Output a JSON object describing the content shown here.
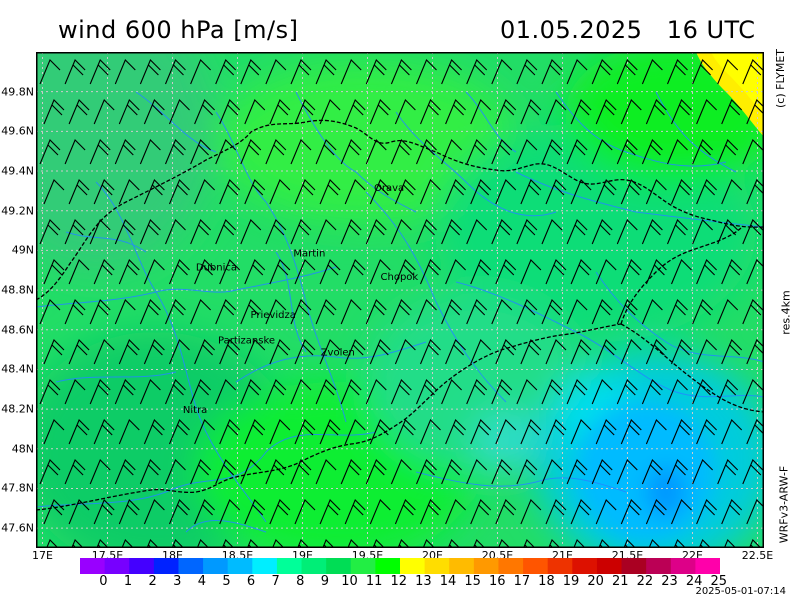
{
  "header": {
    "title": "wind 600 hPa [m/s]",
    "datetime": "01.05.2025   16 UTC"
  },
  "side_labels": {
    "copyright": "(c) FLYMET",
    "resolution": "res.4km",
    "model": "WRFv3-ARW-F"
  },
  "footer": {
    "timestamp": "2025-05-01-07:14"
  },
  "map": {
    "lon_range": [
      16.95,
      22.55
    ],
    "lat_range": [
      47.5,
      50.0
    ],
    "y_ticks": [
      "47.6N",
      "47.8N",
      "48N",
      "48.2N",
      "48.4N",
      "48.6N",
      "48.8N",
      "49N",
      "49.2N",
      "49.4N",
      "49.6N",
      "49.8N"
    ],
    "y_tick_values": [
      47.6,
      47.8,
      48.0,
      48.2,
      48.4,
      48.6,
      48.8,
      49.0,
      49.2,
      49.4,
      49.6,
      49.8
    ],
    "x_ticks": [
      "17E",
      "17.5E",
      "18E",
      "18.5E",
      "19E",
      "19.5E",
      "20E",
      "20.5E",
      "21E",
      "21.5E",
      "22E",
      "22.5E"
    ],
    "x_tick_values": [
      17.0,
      17.5,
      18.0,
      18.5,
      19.0,
      19.5,
      20.0,
      20.5,
      21.0,
      21.5,
      22.0,
      22.5
    ],
    "cities": [
      {
        "name": "Orava",
        "lon": 19.55,
        "lat": 49.32
      },
      {
        "name": "Martin",
        "lon": 18.93,
        "lat": 48.99
      },
      {
        "name": "Dubnica",
        "lon": 18.18,
        "lat": 48.92
      },
      {
        "name": "Chopok",
        "lon": 19.6,
        "lat": 48.87
      },
      {
        "name": "Prievidza",
        "lon": 18.6,
        "lat": 48.68
      },
      {
        "name": "Partizanske",
        "lon": 18.35,
        "lat": 48.55
      },
      {
        "name": "Zvolen",
        "lon": 19.14,
        "lat": 48.49
      },
      {
        "name": "Nitra",
        "lon": 18.08,
        "lat": 48.2
      }
    ],
    "colors": {
      "background_field": "#22dd66",
      "frame": "#000000",
      "borders": "#000000",
      "rivers": "#2288ff",
      "grid": "#bbbbbb",
      "barbs": "#000000"
    }
  },
  "colorbar": {
    "labels": [
      "0",
      "1",
      "2",
      "3",
      "4",
      "5",
      "6",
      "7",
      "8",
      "9",
      "10",
      "11",
      "12",
      "13",
      "14",
      "15",
      "16",
      "17",
      "18",
      "19",
      "20",
      "21",
      "22",
      "23",
      "24",
      "25"
    ],
    "colors": [
      "#9900ff",
      "#7700ff",
      "#4400ff",
      "#0022ff",
      "#0066ff",
      "#0099ff",
      "#00bbff",
      "#00eeff",
      "#00ff99",
      "#00ee77",
      "#00dd55",
      "#22ee44",
      "#00ff00",
      "#ffff00",
      "#ffdd00",
      "#ffbb00",
      "#ff9900",
      "#ff7700",
      "#ff5500",
      "#ee3300",
      "#dd1100",
      "#cc0000",
      "#aa0022",
      "#bb0055",
      "#dd0088",
      "#ff00aa"
    ]
  }
}
